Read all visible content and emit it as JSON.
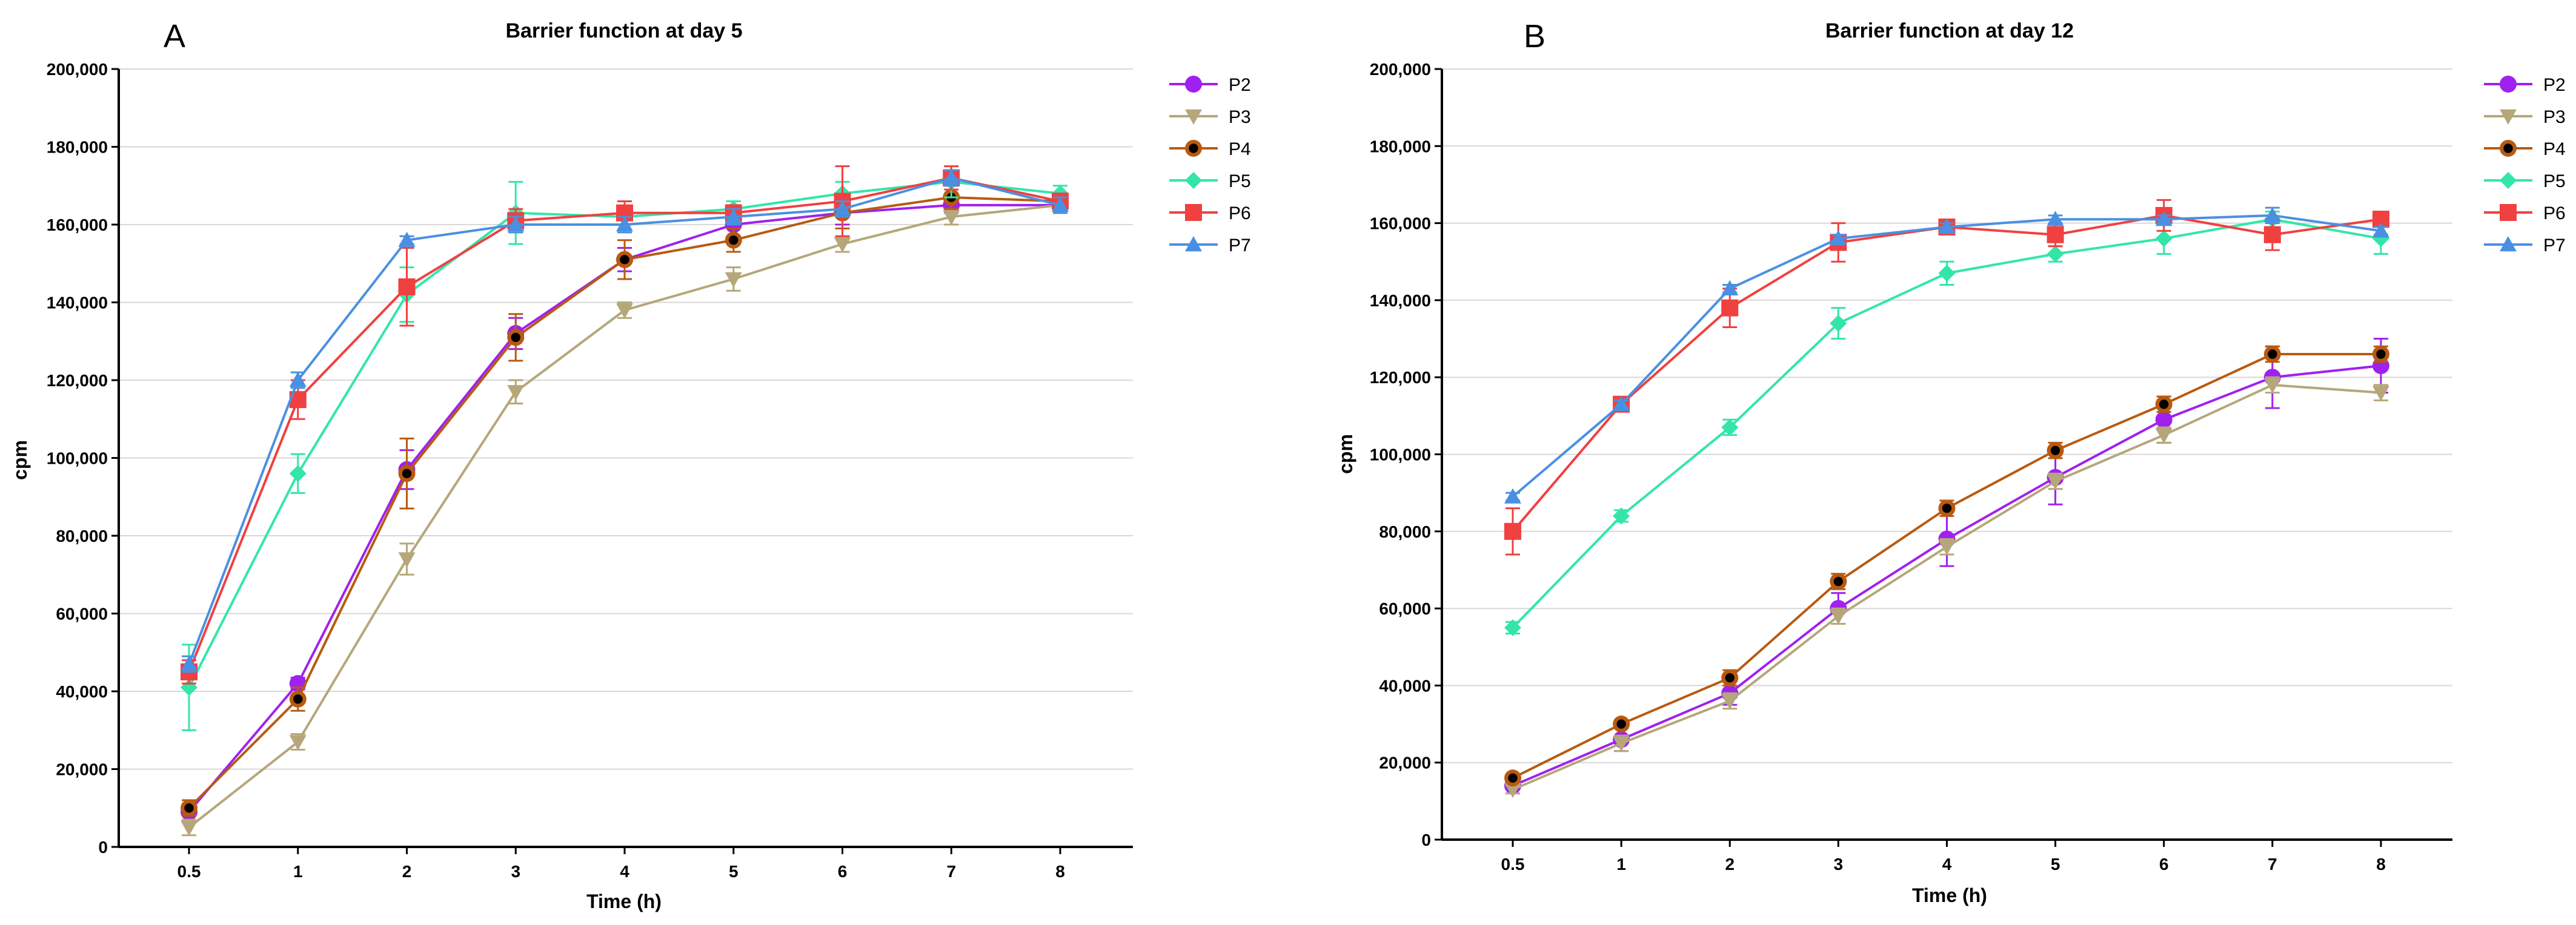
{
  "chart_data": [
    {
      "type": "line",
      "panel_label": "A",
      "title": "Barrier function at day 5",
      "xlabel": "Time (h)",
      "ylabel": "cpm",
      "categories": [
        "0.5",
        "1",
        "2",
        "3",
        "4",
        "5",
        "6",
        "7",
        "8"
      ],
      "ylim": [
        0,
        200000
      ],
      "yticks": [
        0,
        20000,
        40000,
        60000,
        80000,
        100000,
        120000,
        140000,
        160000,
        180000,
        200000
      ],
      "ytick_labels": [
        "0",
        "20,000",
        "40,000",
        "60,000",
        "80,000",
        "100,000",
        "120,000",
        "140,000",
        "160,000",
        "180,000",
        "200,000"
      ],
      "grid": true,
      "legend": "top-right",
      "series": [
        {
          "name": "P2",
          "color": "#a020f0",
          "marker": "circle",
          "values": [
            9000,
            42000,
            97000,
            132000,
            151000,
            160000,
            163000,
            165000,
            165000
          ],
          "errors": [
            2000,
            1500,
            5000,
            4000,
            3000,
            3000,
            3000,
            2000,
            2000
          ]
        },
        {
          "name": "P3",
          "color": "#b5a77a",
          "marker": "triangle-down",
          "values": [
            5000,
            27000,
            74000,
            117000,
            138000,
            146000,
            155000,
            162000,
            165000
          ],
          "errors": [
            2000,
            2000,
            4000,
            3000,
            2000,
            3000,
            2000,
            2000,
            2000
          ]
        },
        {
          "name": "P4",
          "color": "#b85a10",
          "marker": "circle-dot",
          "values": [
            10000,
            38000,
            96000,
            131000,
            151000,
            156000,
            163000,
            167000,
            166000
          ],
          "errors": [
            2000,
            3000,
            9000,
            6000,
            5000,
            3000,
            4000,
            3000,
            2000
          ]
        },
        {
          "name": "P5",
          "color": "#33e6a8",
          "marker": "diamond",
          "values": [
            41000,
            96000,
            142000,
            163000,
            162000,
            164000,
            168000,
            171000,
            168000
          ],
          "errors": [
            11000,
            5000,
            7000,
            8000,
            4000,
            2000,
            3000,
            4000,
            2000
          ]
        },
        {
          "name": "P6",
          "color": "#f04040",
          "marker": "square",
          "values": [
            45000,
            115000,
            144000,
            161000,
            163000,
            163000,
            166000,
            172000,
            166000
          ],
          "errors": [
            3000,
            5000,
            10000,
            3000,
            3000,
            2000,
            9000,
            3000,
            2000
          ]
        },
        {
          "name": "P7",
          "color": "#4a90e2",
          "marker": "triangle-up",
          "values": [
            47000,
            120000,
            156000,
            160000,
            160000,
            162000,
            164000,
            172000,
            165000
          ],
          "errors": [
            2000,
            2000,
            1000,
            2000,
            2000,
            2000,
            2000,
            2000,
            2000
          ]
        }
      ]
    },
    {
      "type": "line",
      "panel_label": "B",
      "title": "Barrier function at day 12",
      "xlabel": "Time (h)",
      "ylabel": "cpm",
      "categories": [
        "0.5",
        "1",
        "2",
        "3",
        "4",
        "5",
        "6",
        "7",
        "8"
      ],
      "ylim": [
        0,
        200000
      ],
      "yticks": [
        0,
        20000,
        40000,
        60000,
        80000,
        100000,
        120000,
        140000,
        160000,
        180000,
        200000
      ],
      "ytick_labels": [
        "0",
        "20,000",
        "40,000",
        "60,000",
        "80,000",
        "100,000",
        "120,000",
        "140,000",
        "160,000",
        "180,000",
        "200,000"
      ],
      "grid": true,
      "legend": "top-right",
      "series": [
        {
          "name": "P2",
          "color": "#a020f0",
          "marker": "circle",
          "values": [
            14000,
            26000,
            38000,
            60000,
            78000,
            94000,
            109000,
            120000,
            123000
          ],
          "errors": [
            2000,
            3000,
            3000,
            4000,
            7000,
            7000,
            6000,
            8000,
            7000
          ]
        },
        {
          "name": "P3",
          "color": "#b5a77a",
          "marker": "triangle-down",
          "values": [
            13000,
            25000,
            36000,
            58000,
            76000,
            93000,
            105000,
            118000,
            116000
          ],
          "errors": [
            1000,
            2000,
            2000,
            2000,
            2000,
            2000,
            2000,
            2000,
            2000
          ]
        },
        {
          "name": "P4",
          "color": "#b85a10",
          "marker": "circle-dot",
          "values": [
            16000,
            30000,
            42000,
            67000,
            86000,
            101000,
            113000,
            126000,
            126000
          ],
          "errors": [
            1000,
            1000,
            2000,
            2000,
            2000,
            2000,
            2000,
            2000,
            2000
          ]
        },
        {
          "name": "P5",
          "color": "#33e6a8",
          "marker": "diamond",
          "values": [
            55000,
            84000,
            107000,
            134000,
            147000,
            152000,
            156000,
            161000,
            156000
          ],
          "errors": [
            1500,
            1500,
            2000,
            4000,
            3000,
            2000,
            4000,
            2000,
            4000
          ]
        },
        {
          "name": "P6",
          "color": "#f04040",
          "marker": "square",
          "values": [
            80000,
            113000,
            138000,
            155000,
            159000,
            157000,
            162000,
            157000,
            161000
          ],
          "errors": [
            6000,
            1500,
            5000,
            5000,
            1500,
            3000,
            4000,
            4000,
            2000
          ]
        },
        {
          "name": "P7",
          "color": "#4a90e2",
          "marker": "triangle-up",
          "values": [
            89000,
            113000,
            143000,
            156000,
            159000,
            161000,
            161000,
            162000,
            158000
          ],
          "errors": [
            1000,
            1000,
            1000,
            1000,
            1000,
            1000,
            1000,
            2000,
            1000
          ]
        }
      ]
    }
  ]
}
